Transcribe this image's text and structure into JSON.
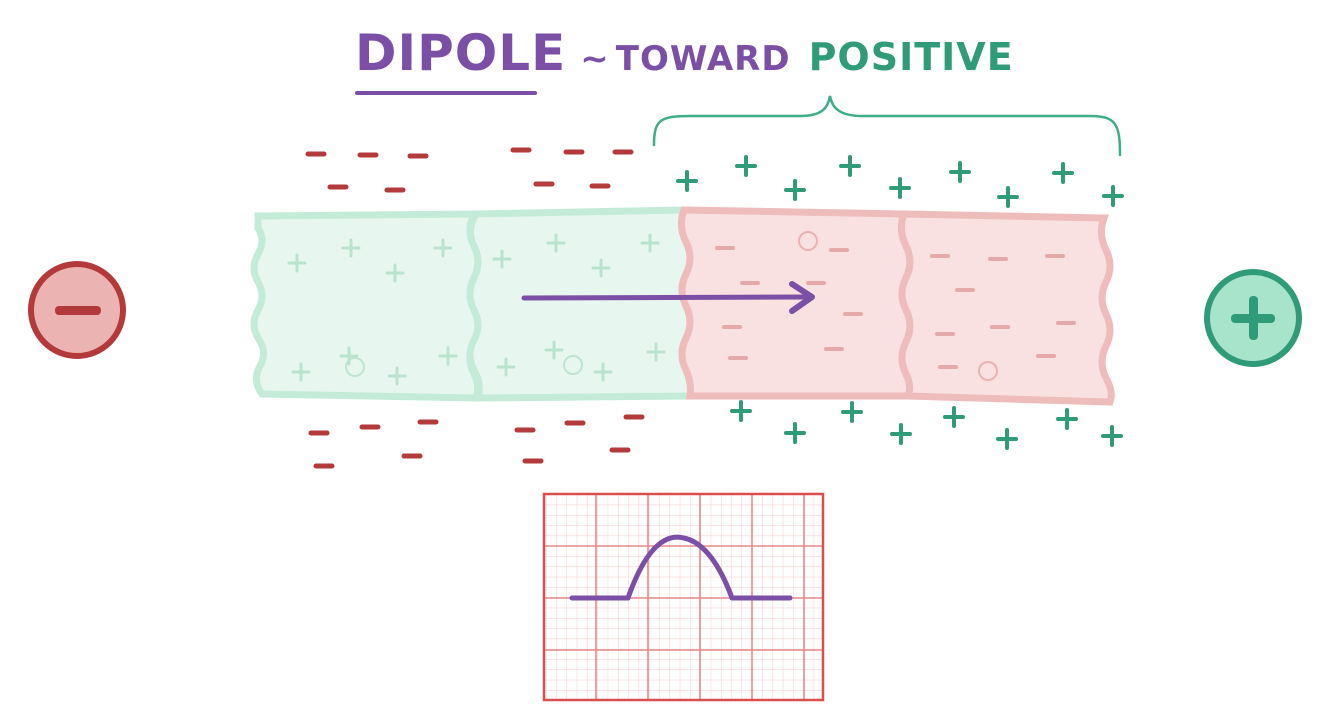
{
  "title": {
    "main": "DIPOLE",
    "separator": "~",
    "middle": "TOWARD",
    "emphasis": "POSITIVE"
  },
  "colors": {
    "purple": "#7b4fa5",
    "green": "#2f9b78",
    "red": "#b33a3a",
    "green_fill": "#e4f6ee",
    "green_edge": "#bfe8d4",
    "pink_fill": "#f9e2e2",
    "pink_edge": "#efbcbc",
    "grid": "#e58a8a"
  },
  "electrodes": {
    "left": {
      "icon": "minus-icon",
      "polarity": "negative"
    },
    "right": {
      "icon": "plus-icon",
      "polarity": "positive"
    }
  },
  "cells": [
    {
      "state": "depolarized",
      "color": "green"
    },
    {
      "state": "depolarized",
      "color": "green"
    },
    {
      "state": "resting",
      "color": "pink"
    },
    {
      "state": "resting",
      "color": "pink"
    }
  ],
  "ecg_trace": {
    "baseline": 0.0,
    "peak": 1.0,
    "shape": "positive deflection"
  }
}
